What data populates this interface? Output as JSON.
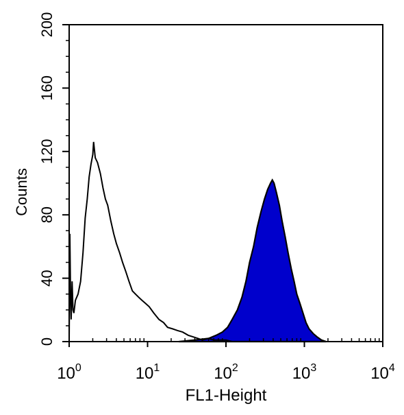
{
  "chart_data": {
    "type": "area",
    "xlabel": "FL1-Height",
    "ylabel": "Counts",
    "x_scale": "log",
    "xlim": [
      1,
      10000
    ],
    "ylim": [
      0,
      200
    ],
    "x_ticks": [
      {
        "value": 1,
        "base": "10",
        "exp": "0"
      },
      {
        "value": 10,
        "base": "10",
        "exp": "1"
      },
      {
        "value": 100,
        "base": "10",
        "exp": "2"
      },
      {
        "value": 1000,
        "base": "10",
        "exp": "3"
      },
      {
        "value": 10000,
        "base": "10",
        "exp": "4"
      }
    ],
    "y_ticks": [
      {
        "value": 0,
        "label": "0"
      },
      {
        "value": 40,
        "label": "40"
      },
      {
        "value": 80,
        "label": "80"
      },
      {
        "value": 120,
        "label": "120"
      },
      {
        "value": 160,
        "label": "160"
      },
      {
        "value": 200,
        "label": "200"
      }
    ],
    "grid": false,
    "series": [
      {
        "style": "outline",
        "color": "#000000",
        "points": [
          [
            1.0,
            0
          ],
          [
            1.02,
            68
          ],
          [
            1.04,
            30
          ],
          [
            1.06,
            14
          ],
          [
            1.09,
            38
          ],
          [
            1.12,
            20
          ],
          [
            1.15,
            18
          ],
          [
            1.2,
            26
          ],
          [
            1.3,
            30
          ],
          [
            1.4,
            38
          ],
          [
            1.5,
            56
          ],
          [
            1.6,
            78
          ],
          [
            1.7,
            90
          ],
          [
            1.8,
            104
          ],
          [
            1.9,
            112
          ],
          [
            2.0,
            118
          ],
          [
            2.05,
            126
          ],
          [
            2.15,
            116
          ],
          [
            2.3,
            113
          ],
          [
            2.5,
            106
          ],
          [
            2.7,
            97
          ],
          [
            2.9,
            90
          ],
          [
            3.1,
            86
          ],
          [
            3.4,
            76
          ],
          [
            3.7,
            68
          ],
          [
            4.0,
            62
          ],
          [
            4.4,
            56
          ],
          [
            4.8,
            50
          ],
          [
            5.3,
            44
          ],
          [
            5.8,
            38
          ],
          [
            6.4,
            32
          ],
          [
            7.0,
            30
          ],
          [
            7.7,
            28
          ],
          [
            8.5,
            26
          ],
          [
            9.5,
            24
          ],
          [
            10.5,
            22
          ],
          [
            12,
            18
          ],
          [
            14,
            14
          ],
          [
            16,
            12
          ],
          [
            18,
            9
          ],
          [
            21,
            8
          ],
          [
            24,
            7
          ],
          [
            28,
            6
          ],
          [
            33,
            4
          ],
          [
            38,
            3
          ],
          [
            44,
            2
          ],
          [
            50,
            1
          ],
          [
            60,
            2
          ],
          [
            70,
            1
          ],
          [
            85,
            1
          ],
          [
            100,
            1
          ],
          [
            120,
            0
          ]
        ]
      },
      {
        "style": "filled",
        "color": "#0000cc",
        "points": [
          [
            25,
            0
          ],
          [
            40,
            1
          ],
          [
            60,
            2
          ],
          [
            75,
            4
          ],
          [
            90,
            6
          ],
          [
            105,
            9
          ],
          [
            120,
            14
          ],
          [
            140,
            20
          ],
          [
            160,
            28
          ],
          [
            180,
            38
          ],
          [
            200,
            50
          ],
          [
            225,
            60
          ],
          [
            250,
            72
          ],
          [
            280,
            82
          ],
          [
            310,
            90
          ],
          [
            340,
            96
          ],
          [
            370,
            100
          ],
          [
            390,
            102
          ],
          [
            410,
            100
          ],
          [
            440,
            94
          ],
          [
            480,
            86
          ],
          [
            520,
            76
          ],
          [
            570,
            66
          ],
          [
            620,
            56
          ],
          [
            680,
            46
          ],
          [
            740,
            38
          ],
          [
            800,
            30
          ],
          [
            880,
            24
          ],
          [
            960,
            18
          ],
          [
            1050,
            12
          ],
          [
            1150,
            8
          ],
          [
            1300,
            5
          ],
          [
            1450,
            3
          ],
          [
            1650,
            1
          ],
          [
            1900,
            0
          ]
        ]
      }
    ]
  }
}
